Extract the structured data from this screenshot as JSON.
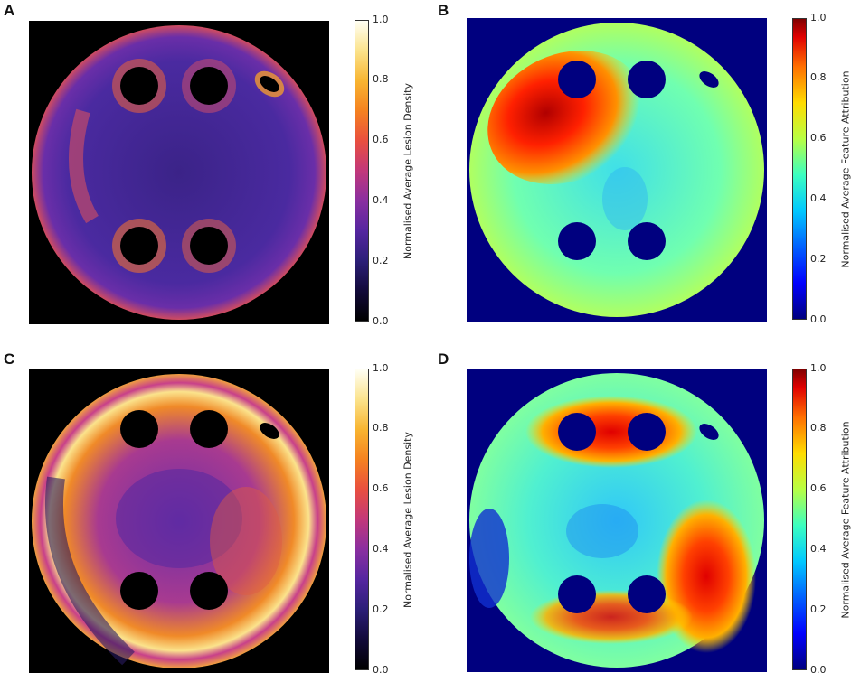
{
  "panels": [
    {
      "letter": "A",
      "cmap": "fire",
      "colorbar_label": "Normalised Average Lesion Density",
      "ticks": [
        "1.0",
        "0.8",
        "0.6",
        "0.4",
        "0.2",
        "0.0"
      ]
    },
    {
      "letter": "B",
      "cmap": "jet",
      "colorbar_label": "Normalised Average Feature Attribution",
      "ticks": [
        "1.0",
        "0.8",
        "0.6",
        "0.4",
        "0.2",
        "0.0"
      ]
    },
    {
      "letter": "C",
      "cmap": "fire",
      "colorbar_label": "Normalised Average Lesion Density",
      "ticks": [
        "1.0",
        "0.8",
        "0.6",
        "0.4",
        "0.2",
        "0.0"
      ]
    },
    {
      "letter": "D",
      "cmap": "jet",
      "colorbar_label": "Normalised Average Feature Attribution",
      "ticks": [
        "1.0",
        "0.8",
        "0.6",
        "0.4",
        "0.2",
        "0.0"
      ]
    }
  ],
  "colors": {
    "fire_background": "#000000",
    "jet_background": "#00007f"
  }
}
